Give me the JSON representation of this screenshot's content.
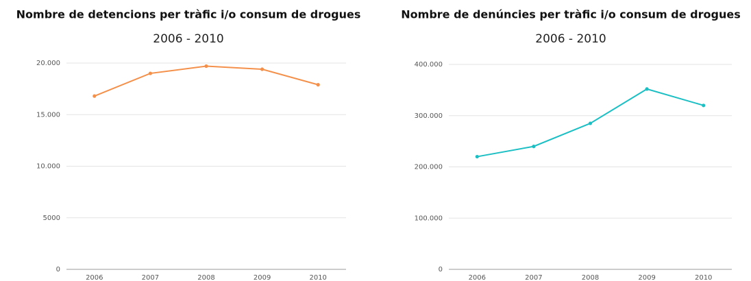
{
  "chart_data": [
    {
      "type": "line",
      "title": "Nombre de detencions per tràfic i/o consum de drogues",
      "subtitle": "2006 - 2010",
      "categories": [
        "2006",
        "2007",
        "2008",
        "2009",
        "2010"
      ],
      "series": [
        {
          "color": "#f4904a",
          "values": [
            16800,
            19000,
            19700,
            19400,
            17900
          ]
        }
      ],
      "ylim": [
        0,
        20000
      ],
      "yticks": [
        0,
        5000,
        {
          "value": 10000,
          "label": "10.000"
        },
        {
          "value": 15000,
          "label": "15.000"
        },
        {
          "value": 20000,
          "label": "20.000"
        }
      ],
      "grid": true
    },
    {
      "type": "line",
      "title": "Nombre de denúncies per tràfic i/o consum de drogues",
      "subtitle": "2006 - 2010",
      "categories": [
        "2006",
        "2007",
        "2008",
        "2009",
        "2010"
      ],
      "series": [
        {
          "color": "#1bbfc4",
          "values": [
            220000,
            240000,
            285000,
            352000,
            320000
          ]
        }
      ],
      "ylim": [
        0,
        400000
      ],
      "yticks": [
        0,
        {
          "value": 100000,
          "label": "100.000"
        },
        {
          "value": 200000,
          "label": "200.000"
        },
        {
          "value": 300000,
          "label": "300.000"
        },
        {
          "value": 400000,
          "label": "400.000"
        }
      ],
      "grid": true
    }
  ]
}
